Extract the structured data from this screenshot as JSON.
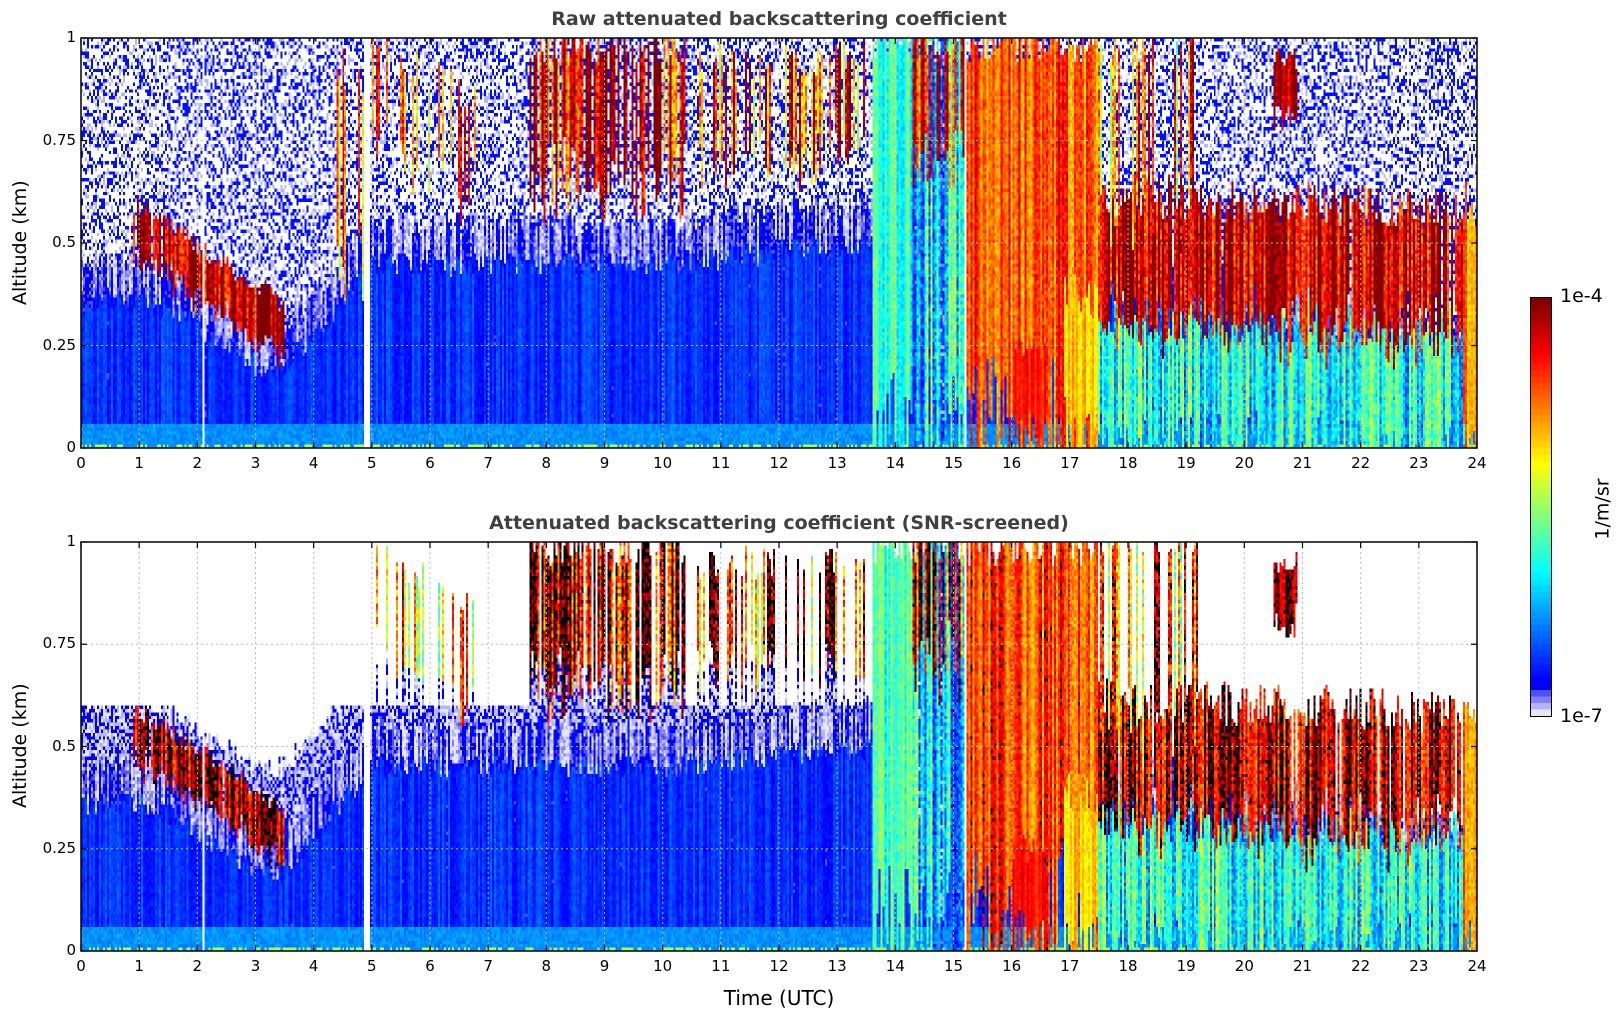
{
  "chart_data": [
    {
      "type": "heatmap",
      "title": "Raw attenuated backscattering coefficient",
      "xlabel": "",
      "ylabel": "Altitude (km)",
      "xlim": [
        0,
        24
      ],
      "ylim": [
        0,
        1
      ],
      "xticks": [
        "0",
        "1",
        "2",
        "3",
        "4",
        "5",
        "6",
        "7",
        "8",
        "9",
        "10",
        "11",
        "12",
        "13",
        "14",
        "15",
        "16",
        "17",
        "18",
        "19",
        "20",
        "21",
        "22",
        "23",
        "24"
      ],
      "yticks": [
        "0",
        "0.25",
        "0.5",
        "0.75",
        "1"
      ],
      "grid": true,
      "screened": false
    },
    {
      "type": "heatmap",
      "title": "Attenuated backscattering coefficient (SNR-screened)",
      "xlabel": "Time (UTC)",
      "ylabel": "Altitude (km)",
      "xlim": [
        0,
        24
      ],
      "ylim": [
        0,
        1
      ],
      "xticks": [
        "0",
        "1",
        "2",
        "3",
        "4",
        "5",
        "6",
        "7",
        "8",
        "9",
        "10",
        "11",
        "12",
        "13",
        "14",
        "15",
        "16",
        "17",
        "18",
        "19",
        "20",
        "21",
        "22",
        "23",
        "24"
      ],
      "yticks": [
        "0",
        "0.25",
        "0.5",
        "0.75",
        "1"
      ],
      "grid": true,
      "screened": true
    }
  ],
  "colorbar": {
    "label": "1/m/sr",
    "max_label": "1e-4",
    "min_label": "1e-7",
    "log10_range": [
      -7,
      -4
    ],
    "scale": "log",
    "colormap": "jet",
    "low_colors": [
      "#e6e6fa",
      "#b4b4ff",
      "#8080ff",
      "#5050ff"
    ]
  },
  "field": {
    "boundary_layer_top_km": [
      [
        0,
        0.45
      ],
      [
        1,
        0.47
      ],
      [
        2,
        0.4
      ],
      [
        3,
        0.3
      ],
      [
        3.5,
        0.3
      ],
      [
        4,
        0.38
      ],
      [
        5,
        0.55
      ],
      [
        10,
        0.55
      ],
      [
        13.5,
        0.6
      ],
      [
        24,
        0.3
      ]
    ],
    "boundary_layer_log10": -6.6,
    "surface_layer_log10": -6.3,
    "data_gaps_utc": [
      2.1,
      4.9,
      4.95,
      15.2
    ],
    "features": [
      {
        "t": [
          0.9,
          3.5
        ],
        "z_top": [
          0.6,
          0.35
        ],
        "depth": 0.13,
        "log10": -4.2,
        "jitter": 0.5,
        "density": 0.95
      },
      {
        "t": [
          4.4,
          5.0
        ],
        "z_top": [
          0.95,
          0.9
        ],
        "depth": 0.5,
        "log10": -4.7,
        "jitter": 0.6,
        "density": 0.35
      },
      {
        "t": [
          5.0,
          6.8
        ],
        "z_top": [
          1.0,
          0.85
        ],
        "depth": 0.25,
        "log10": -4.9,
        "jitter": 0.7,
        "density": 0.35
      },
      {
        "t": [
          7.7,
          10.4
        ],
        "z_top": [
          1.0,
          1.0
        ],
        "depth": 0.35,
        "log10": -4.3,
        "jitter": 0.7,
        "density": 0.75
      },
      {
        "t": [
          10.6,
          13.5
        ],
        "z_top": [
          0.95,
          0.95
        ],
        "depth": 0.25,
        "log10": -4.6,
        "jitter": 0.8,
        "density": 0.4
      },
      {
        "t": [
          13.6,
          14.3
        ],
        "z_top": [
          1.0,
          1.0
        ],
        "depth": 1.0,
        "log10": -5.8,
        "jitter": 0.3,
        "density": 1
      },
      {
        "t": [
          14.3,
          15.2
        ],
        "z_top": [
          1.0,
          1.0
        ],
        "depth": 1.0,
        "log10": -6.1,
        "jitter": 0.6,
        "density": 1
      },
      {
        "t": [
          14.3,
          15.2
        ],
        "z_top": [
          1.0,
          1.0
        ],
        "depth": 0.3,
        "log10": -4.4,
        "jitter": 0.6,
        "density": 0.7
      },
      {
        "t": [
          15.2,
          17.5
        ],
        "z_top": [
          1.0,
          1.0
        ],
        "depth": 0.97,
        "log10": -4.65,
        "jitter": 0.35,
        "density": 1
      },
      {
        "t": [
          16.9,
          17.5
        ],
        "z_top": [
          0.4,
          0.35
        ],
        "depth": 0.35,
        "log10": -5.05,
        "jitter": 0.2,
        "density": 1
      },
      {
        "t": [
          16.0,
          16.6
        ],
        "z_top": [
          0.25,
          0.25
        ],
        "depth": 0.2,
        "log10": -4.45,
        "jitter": 0.15,
        "density": 1
      },
      {
        "t": [
          17.5,
          23.8
        ],
        "z_top": [
          0.33,
          0.3
        ],
        "depth": 0.33,
        "log10": -5.9,
        "jitter": 0.5,
        "density": 1
      },
      {
        "t": [
          17.5,
          23.8
        ],
        "z_top": [
          0.62,
          0.58
        ],
        "depth": 0.3,
        "log10": -4.25,
        "jitter": 0.5,
        "density": 0.95
      },
      {
        "t": [
          17.5,
          19.2
        ],
        "z_top": [
          1.0,
          1.0
        ],
        "depth": 0.45,
        "log10": -4.8,
        "jitter": 0.8,
        "density": 0.35
      },
      {
        "t": [
          20.5,
          20.9
        ],
        "z_top": [
          0.95,
          0.95
        ],
        "depth": 0.15,
        "log10": -4.15,
        "jitter": 0.3,
        "density": 1
      },
      {
        "t": [
          23.75,
          24
        ],
        "z_top": [
          0.6,
          0.6
        ],
        "depth": 0.6,
        "log10": -4.8,
        "jitter": 0.3,
        "density": 1
      }
    ],
    "screened_black_above_log10": -4.25
  }
}
